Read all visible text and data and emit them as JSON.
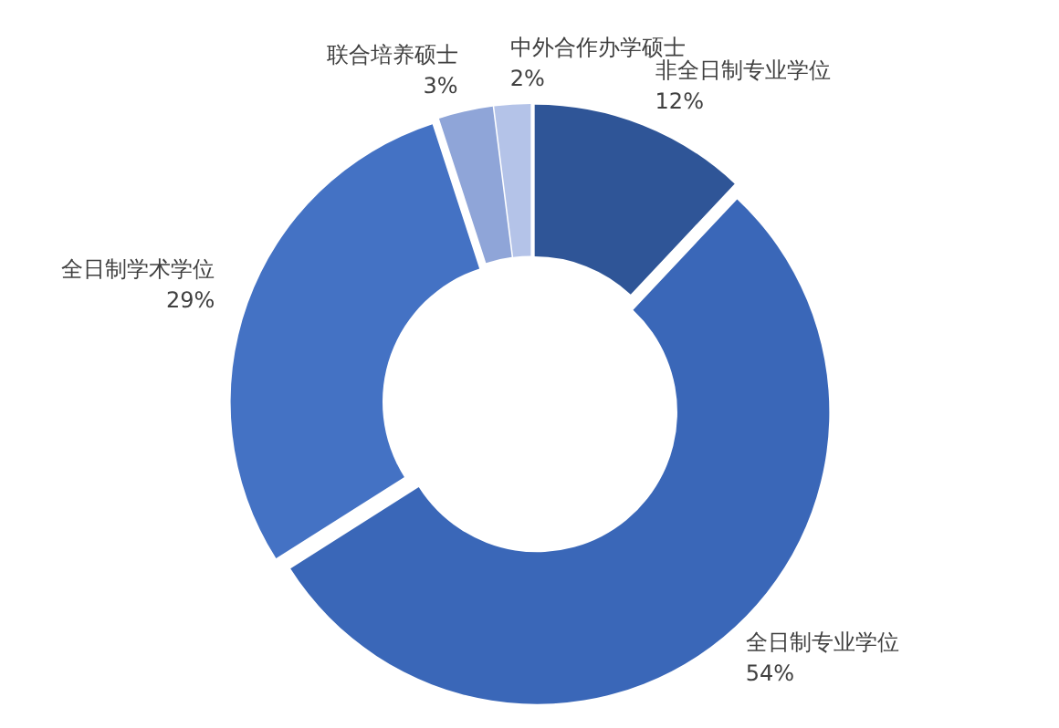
{
  "chart_data": {
    "type": "donut",
    "categories": [
      "非全日制专业学位",
      "全日制专业学位",
      "全日制学术学位",
      "联合培养硕士",
      "中外合作办学硕士"
    ],
    "values": [
      12,
      54,
      29,
      3,
      2
    ],
    "value_labels": [
      "12%",
      "54%",
      "29%",
      "3%",
      "2%"
    ],
    "colors": [
      "#2f5597",
      "#3a67b8",
      "#4472c4",
      "#8fa5d8",
      "#b4c3e8"
    ]
  }
}
